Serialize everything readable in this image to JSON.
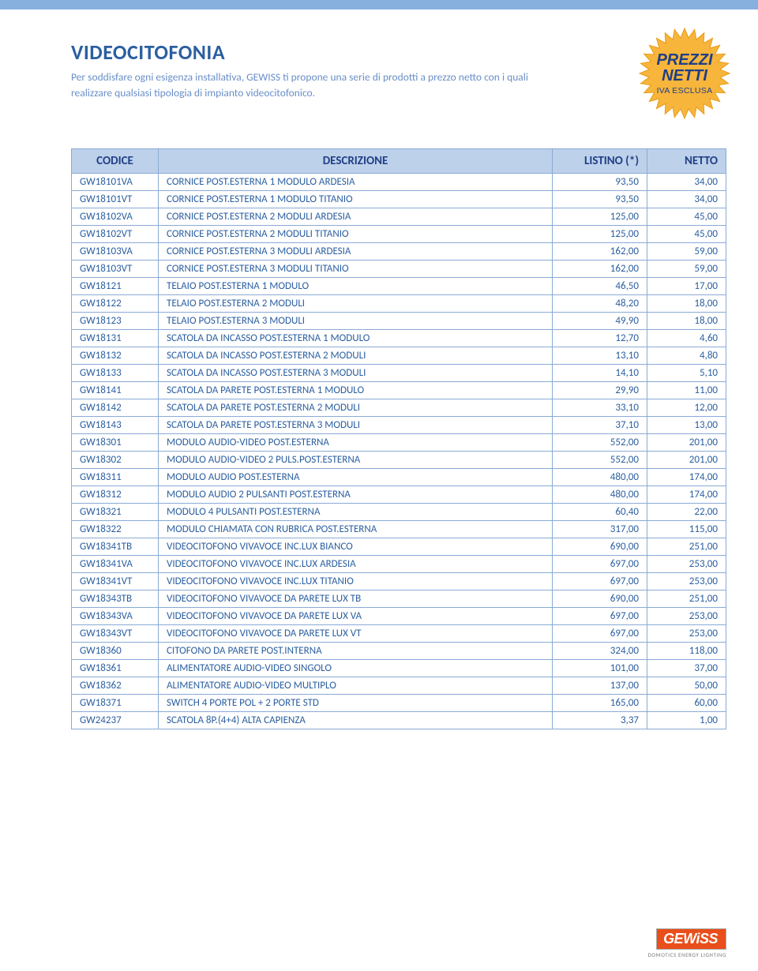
{
  "colors": {
    "accent": "#2b5fa0",
    "accent_light": "#6a8fc8",
    "header_bg": "#bed1ea",
    "border": "#8aaad6",
    "topbar": "#88b0de",
    "badge_fill": "#f5a623",
    "badge_text": "#1f3f87",
    "logo_bg": "#e94e1b"
  },
  "fonts": {
    "body_family": "Calibri, Arial, sans-serif",
    "title_size_pt": 20,
    "subtitle_size_pt": 10,
    "table_header_size_pt": 11,
    "table_cell_size_pt": 10
  },
  "title": "VIDEOCITOFONIA",
  "subtitle": "Per soddisfare ogni esigenza installativa, GEWISS ti propone una serie di prodotti a prezzo netto con i quali realizzare qualsiasi tipologia di impianto videocitofonico.",
  "badge": {
    "line1": "PREZZI",
    "line2": "NETTI",
    "line3": "IVA ESCLUSA"
  },
  "table": {
    "columns": [
      "CODICE",
      "DESCRIZIONE",
      "LISTINO (*)",
      "NETTO"
    ],
    "col_align": [
      "left",
      "left",
      "right",
      "right"
    ],
    "rows": [
      [
        "GW18101VA",
        "CORNICE POST.ESTERNA 1 MODULO ARDESIA",
        "93,50",
        "34,00"
      ],
      [
        "GW18101VT",
        "CORNICE POST.ESTERNA 1 MODULO TITANIO",
        "93,50",
        "34,00"
      ],
      [
        "GW18102VA",
        "CORNICE POST.ESTERNA 2 MODULI ARDESIA",
        "125,00",
        "45,00"
      ],
      [
        "GW18102VT",
        "CORNICE POST.ESTERNA 2 MODULI TITANIO",
        "125,00",
        "45,00"
      ],
      [
        "GW18103VA",
        "CORNICE POST.ESTERNA 3 MODULI ARDESIA",
        "162,00",
        "59,00"
      ],
      [
        "GW18103VT",
        "CORNICE POST.ESTERNA 3 MODULI TITANIO",
        "162,00",
        "59,00"
      ],
      [
        "GW18121",
        "TELAIO POST.ESTERNA 1 MODULO",
        "46,50",
        "17,00"
      ],
      [
        "GW18122",
        "TELAIO POST.ESTERNA 2 MODULI",
        "48,20",
        "18,00"
      ],
      [
        "GW18123",
        "TELAIO POST.ESTERNA 3 MODULI",
        "49,90",
        "18,00"
      ],
      [
        "GW18131",
        "SCATOLA DA INCASSO POST.ESTERNA 1 MODULO",
        "12,70",
        "4,60"
      ],
      [
        "GW18132",
        "SCATOLA DA INCASSO POST.ESTERNA 2 MODULI",
        "13,10",
        "4,80"
      ],
      [
        "GW18133",
        "SCATOLA DA INCASSO POST.ESTERNA 3 MODULI",
        "14,10",
        "5,10"
      ],
      [
        "GW18141",
        "SCATOLA DA PARETE POST.ESTERNA 1 MODULO",
        "29,90",
        "11,00"
      ],
      [
        "GW18142",
        "SCATOLA DA PARETE POST.ESTERNA 2 MODULI",
        "33,10",
        "12,00"
      ],
      [
        "GW18143",
        "SCATOLA DA PARETE POST.ESTERNA 3 MODULI",
        "37,10",
        "13,00"
      ],
      [
        "GW18301",
        "MODULO AUDIO-VIDEO POST.ESTERNA",
        "552,00",
        "201,00"
      ],
      [
        "GW18302",
        "MODULO AUDIO-VIDEO 2 PULS.POST.ESTERNA",
        "552,00",
        "201,00"
      ],
      [
        "GW18311",
        "MODULO AUDIO POST.ESTERNA",
        "480,00",
        "174,00"
      ],
      [
        "GW18312",
        "MODULO AUDIO 2 PULSANTI POST.ESTERNA",
        "480,00",
        "174,00"
      ],
      [
        "GW18321",
        "MODULO 4 PULSANTI POST.ESTERNA",
        "60,40",
        "22,00"
      ],
      [
        "GW18322",
        "MODULO CHIAMATA CON RUBRICA POST.ESTERNA",
        "317,00",
        "115,00"
      ],
      [
        "GW18341TB",
        "VIDEOCITOFONO VIVAVOCE INC.LUX BIANCO",
        "690,00",
        "251,00"
      ],
      [
        "GW18341VA",
        "VIDEOCITOFONO VIVAVOCE INC.LUX ARDESIA",
        "697,00",
        "253,00"
      ],
      [
        "GW18341VT",
        "VIDEOCITOFONO VIVAVOCE INC.LUX TITANIO",
        "697,00",
        "253,00"
      ],
      [
        "GW18343TB",
        "VIDEOCITOFONO VIVAVOCE DA PARETE LUX TB",
        "690,00",
        "251,00"
      ],
      [
        "GW18343VA",
        "VIDEOCITOFONO VIVAVOCE DA PARETE LUX VA",
        "697,00",
        "253,00"
      ],
      [
        "GW18343VT",
        "VIDEOCITOFONO VIVAVOCE DA PARETE LUX VT",
        "697,00",
        "253,00"
      ],
      [
        "GW18360",
        "CITOFONO DA PARETE POST.INTERNA",
        "324,00",
        "118,00"
      ],
      [
        "GW18361",
        "ALIMENTATORE AUDIO-VIDEO SINGOLO",
        "101,00",
        "37,00"
      ],
      [
        "GW18362",
        "ALIMENTATORE AUDIO-VIDEO MULTIPLO",
        "137,00",
        "50,00"
      ],
      [
        "GW18371",
        "SWITCH 4 PORTE POL + 2 PORTE STD",
        "165,00",
        "60,00"
      ],
      [
        "GW24237",
        "SCATOLA 8P.(4+4) ALTA CAPIENZA",
        "3,37",
        "1,00"
      ]
    ]
  },
  "logo": {
    "main": "GEWiSS",
    "tag": "DOMOTICS  ENERGY  LIGHTING"
  }
}
